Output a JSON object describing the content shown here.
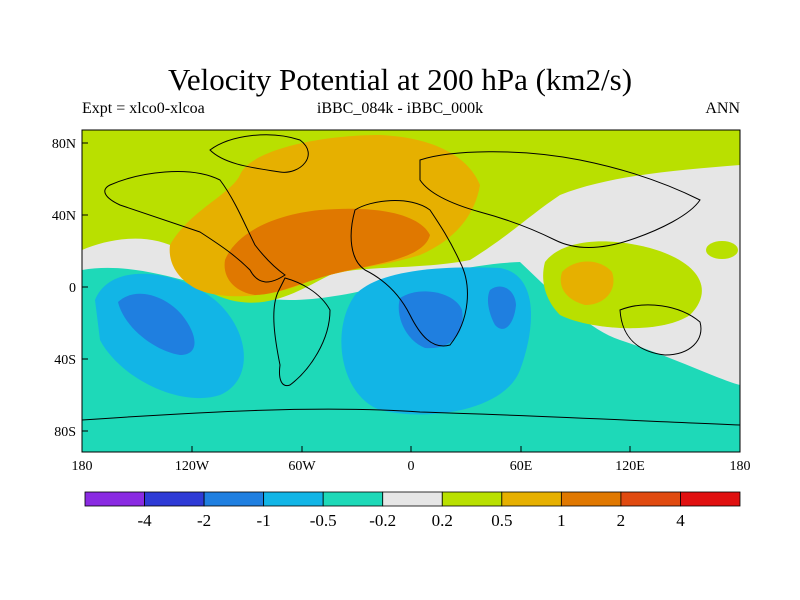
{
  "title": "Velocity Potential at 200 hPa (km2/s)",
  "subtitle_left": "Expt = xlco0-xlcoa",
  "subtitle_center": "iBBC_084k - iBBC_000k",
  "subtitle_right": "ANN",
  "axes": {
    "x_ticks": [
      "180",
      "120W",
      "60W",
      "0",
      "60E",
      "120E",
      "180"
    ],
    "y_ticks": [
      "80N",
      "40N",
      "0",
      "40S",
      "80S"
    ]
  },
  "colorbar": {
    "colors": [
      "#8a2be2",
      "#2e3bd6",
      "#1f7fe0",
      "#12b5e6",
      "#1ed9b8",
      "#e6e6e6",
      "#b9e000",
      "#e6b000",
      "#e07800",
      "#e04a10",
      "#e01010"
    ],
    "labels": [
      "-4",
      "-2",
      "-1",
      "-0.5",
      "-0.2",
      "0.2",
      "0.5",
      "1",
      "2",
      "4"
    ]
  }
}
